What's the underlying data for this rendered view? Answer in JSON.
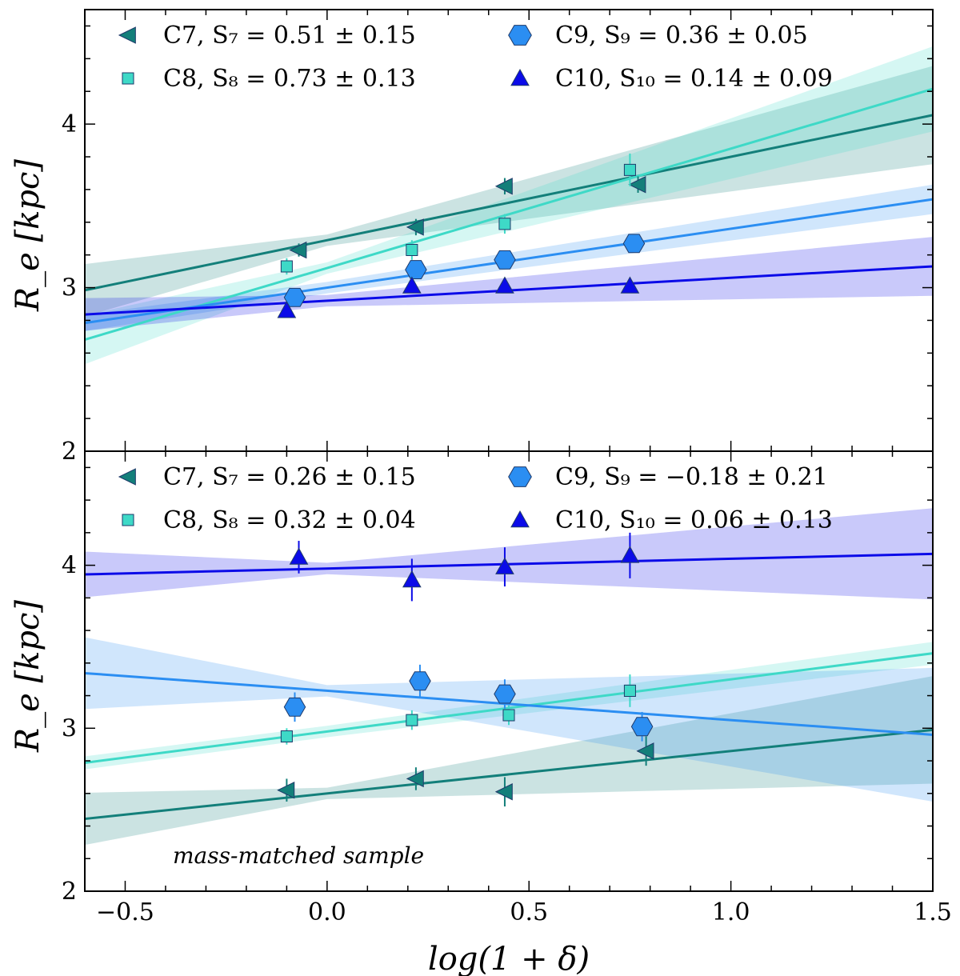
{
  "chart_data": [
    {
      "type": "scatter",
      "panel": "top",
      "ylabel": "R_e [kpc]",
      "xlabel": "log(1 + δ)",
      "xlim": [
        -0.6,
        1.5
      ],
      "ylim": [
        2.0,
        4.7
      ],
      "xticks": [
        -0.5,
        0.0,
        0.5,
        1.0,
        1.5
      ],
      "yticks": [
        2,
        3,
        4
      ],
      "tick_labels_y": [
        "2",
        "3",
        "4"
      ],
      "annotation": "",
      "series": [
        {
          "name": "C7",
          "legend": "C7,  S₇ = 0.51 ± 0.15",
          "marker": "triangle-left",
          "color": "#137f7a",
          "x": [
            -0.07,
            0.22,
            0.44,
            0.77
          ],
          "y": [
            3.23,
            3.37,
            3.62,
            3.63
          ],
          "yerr": [
            0.04,
            0.05,
            0.05,
            0.05
          ],
          "fit": {
            "slope": 0.51,
            "intercept": 3.29
          },
          "band": {
            "left": 0.16,
            "pivot": 0.0,
            "right": 0.3
          }
        },
        {
          "name": "C8",
          "legend": "C8,  S₈ = 0.73 ± 0.13",
          "marker": "square",
          "color": "#3ed9c7",
          "x": [
            -0.1,
            0.21,
            0.44,
            0.75
          ],
          "y": [
            3.13,
            3.23,
            3.39,
            3.72
          ],
          "yerr": [
            0.05,
            0.06,
            0.06,
            0.1
          ],
          "fit": {
            "slope": 0.73,
            "intercept": 3.12
          },
          "band": {
            "left": 0.15,
            "pivot": 0.0,
            "right": 0.26
          }
        },
        {
          "name": "C9",
          "legend": "C9,  S₉ = 0.36 ± 0.05",
          "marker": "hexagon",
          "color": "#2b8ef2",
          "x": [
            -0.08,
            0.22,
            0.44,
            0.76
          ],
          "y": [
            2.94,
            3.11,
            3.17,
            3.27
          ],
          "yerr": [
            0.04,
            0.04,
            0.04,
            0.04
          ],
          "fit": {
            "slope": 0.36,
            "intercept": 3.0
          },
          "band": {
            "left": 0.05,
            "pivot": 0.0,
            "right": 0.09
          }
        },
        {
          "name": "C10",
          "legend": "C10,  S₁₀ = 0.14 ± 0.09",
          "marker": "triangle-up",
          "color": "#0b0be8",
          "x": [
            -0.1,
            0.21,
            0.44,
            0.75
          ],
          "y": [
            2.86,
            3.01,
            3.01,
            3.01
          ],
          "yerr": [
            0.03,
            0.03,
            0.03,
            0.03
          ],
          "fit": {
            "slope": 0.14,
            "intercept": 2.92
          },
          "band": {
            "left": 0.1,
            "pivot": 0.0,
            "right": 0.18
          }
        }
      ]
    },
    {
      "type": "scatter",
      "panel": "bottom",
      "ylabel": "R_e [kpc]",
      "xlabel": "log(1 + δ)",
      "xlim": [
        -0.6,
        1.5
      ],
      "ylim": [
        2.0,
        4.7
      ],
      "xticks": [
        -0.5,
        0.0,
        0.5,
        1.0,
        1.5
      ],
      "yticks": [
        2,
        3,
        4
      ],
      "tick_labels_y": [
        "2",
        "3",
        "4"
      ],
      "annotation": "mass-matched sample",
      "series": [
        {
          "name": "C7",
          "legend": "C7,  S₇ = 0.26 ± 0.15",
          "marker": "triangle-left",
          "color": "#137f7a",
          "x": [
            -0.1,
            0.22,
            0.44,
            0.79
          ],
          "y": [
            2.62,
            2.69,
            2.61,
            2.86
          ],
          "yerr": [
            0.07,
            0.07,
            0.09,
            0.09
          ],
          "fit": {
            "slope": 0.26,
            "intercept": 2.6
          },
          "band": {
            "left": 0.16,
            "pivot": 0.0,
            "right": 0.33
          }
        },
        {
          "name": "C8",
          "legend": "C8,  S₈ = 0.32 ± 0.04",
          "marker": "square",
          "color": "#3ed9c7",
          "x": [
            -0.1,
            0.21,
            0.45,
            0.75
          ],
          "y": [
            2.95,
            3.05,
            3.08,
            3.23
          ],
          "yerr": [
            0.05,
            0.06,
            0.06,
            0.1
          ],
          "fit": {
            "slope": 0.32,
            "intercept": 2.98
          },
          "band": {
            "left": 0.04,
            "pivot": 0.0,
            "right": 0.07
          }
        },
        {
          "name": "C9",
          "legend": "C9,  S₉ = −0.18 ± 0.21",
          "marker": "hexagon",
          "color": "#2b8ef2",
          "x": [
            -0.08,
            0.23,
            0.44,
            0.78
          ],
          "y": [
            3.13,
            3.29,
            3.21,
            3.01
          ],
          "yerr": [
            0.09,
            0.1,
            0.09,
            0.09
          ],
          "fit": {
            "slope": -0.18,
            "intercept": 3.23
          },
          "band": {
            "left": 0.22,
            "pivot": 0.0,
            "right": 0.41
          }
        },
        {
          "name": "C10",
          "legend": "C10,  S₁₀ = 0.06 ± 0.13",
          "marker": "triangle-up",
          "color": "#0b0be8",
          "x": [
            -0.07,
            0.21,
            0.44,
            0.75
          ],
          "y": [
            4.05,
            3.91,
            3.99,
            4.06
          ],
          "yerr": [
            0.1,
            0.13,
            0.12,
            0.14
          ],
          "fit": {
            "slope": 0.06,
            "intercept": 3.98
          },
          "band": {
            "left": 0.14,
            "pivot": 0.0,
            "right": 0.28
          }
        }
      ]
    }
  ]
}
